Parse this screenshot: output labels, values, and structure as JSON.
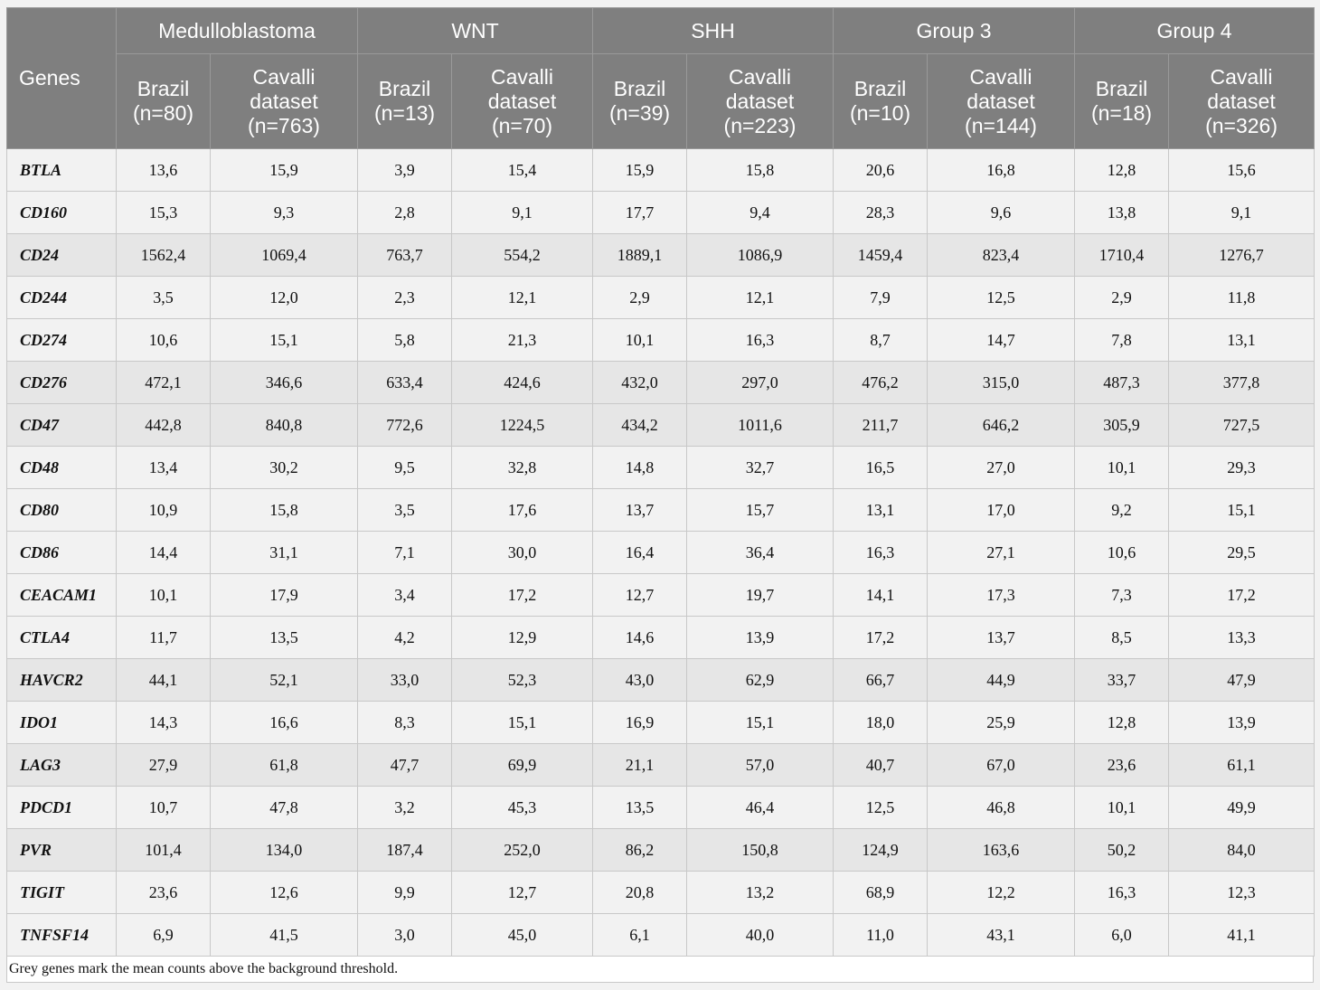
{
  "header": {
    "genes_label": "Genes",
    "groups": [
      "Medulloblastoma",
      "WNT",
      "SHH",
      "Group 3",
      "Group 4"
    ],
    "subheaders": [
      [
        "Brazil",
        "(n=80)"
      ],
      [
        "Cavalli",
        "dataset",
        "(n=763)"
      ],
      [
        "Brazil",
        "(n=13)"
      ],
      [
        "Cavalli",
        "dataset",
        "(n=70)"
      ],
      [
        "Brazil",
        "(n=39)"
      ],
      [
        "Cavalli",
        "dataset",
        "(n=223)"
      ],
      [
        "Brazil",
        "(n=10)"
      ],
      [
        "Cavalli",
        "dataset",
        "(n=144)"
      ],
      [
        "Brazil",
        "(n=18)"
      ],
      [
        "Cavalli",
        "dataset",
        "(n=326)"
      ]
    ]
  },
  "rows": [
    {
      "gene": "BTLA",
      "grey": false,
      "values": [
        "13,6",
        "15,9",
        "3,9",
        "15,4",
        "15,9",
        "15,8",
        "20,6",
        "16,8",
        "12,8",
        "15,6"
      ]
    },
    {
      "gene": "CD160",
      "grey": false,
      "values": [
        "15,3",
        "9,3",
        "2,8",
        "9,1",
        "17,7",
        "9,4",
        "28,3",
        "9,6",
        "13,8",
        "9,1"
      ]
    },
    {
      "gene": "CD24",
      "grey": true,
      "values": [
        "1562,4",
        "1069,4",
        "763,7",
        "554,2",
        "1889,1",
        "1086,9",
        "1459,4",
        "823,4",
        "1710,4",
        "1276,7"
      ]
    },
    {
      "gene": "CD244",
      "grey": false,
      "values": [
        "3,5",
        "12,0",
        "2,3",
        "12,1",
        "2,9",
        "12,1",
        "7,9",
        "12,5",
        "2,9",
        "11,8"
      ]
    },
    {
      "gene": "CD274",
      "grey": false,
      "values": [
        "10,6",
        "15,1",
        "5,8",
        "21,3",
        "10,1",
        "16,3",
        "8,7",
        "14,7",
        "7,8",
        "13,1"
      ]
    },
    {
      "gene": "CD276",
      "grey": true,
      "values": [
        "472,1",
        "346,6",
        "633,4",
        "424,6",
        "432,0",
        "297,0",
        "476,2",
        "315,0",
        "487,3",
        "377,8"
      ]
    },
    {
      "gene": "CD47",
      "grey": true,
      "values": [
        "442,8",
        "840,8",
        "772,6",
        "1224,5",
        "434,2",
        "1011,6",
        "211,7",
        "646,2",
        "305,9",
        "727,5"
      ]
    },
    {
      "gene": "CD48",
      "grey": false,
      "values": [
        "13,4",
        "30,2",
        "9,5",
        "32,8",
        "14,8",
        "32,7",
        "16,5",
        "27,0",
        "10,1",
        "29,3"
      ]
    },
    {
      "gene": "CD80",
      "grey": false,
      "values": [
        "10,9",
        "15,8",
        "3,5",
        "17,6",
        "13,7",
        "15,7",
        "13,1",
        "17,0",
        "9,2",
        "15,1"
      ]
    },
    {
      "gene": "CD86",
      "grey": false,
      "values": [
        "14,4",
        "31,1",
        "7,1",
        "30,0",
        "16,4",
        "36,4",
        "16,3",
        "27,1",
        "10,6",
        "29,5"
      ]
    },
    {
      "gene": "CEACAM1",
      "grey": false,
      "values": [
        "10,1",
        "17,9",
        "3,4",
        "17,2",
        "12,7",
        "19,7",
        "14,1",
        "17,3",
        "7,3",
        "17,2"
      ]
    },
    {
      "gene": "CTLA4",
      "grey": false,
      "values": [
        "11,7",
        "13,5",
        "4,2",
        "12,9",
        "14,6",
        "13,9",
        "17,2",
        "13,7",
        "8,5",
        "13,3"
      ]
    },
    {
      "gene": "HAVCR2",
      "grey": true,
      "values": [
        "44,1",
        "52,1",
        "33,0",
        "52,3",
        "43,0",
        "62,9",
        "66,7",
        "44,9",
        "33,7",
        "47,9"
      ]
    },
    {
      "gene": "IDO1",
      "grey": false,
      "values": [
        "14,3",
        "16,6",
        "8,3",
        "15,1",
        "16,9",
        "15,1",
        "18,0",
        "25,9",
        "12,8",
        "13,9"
      ]
    },
    {
      "gene": "LAG3",
      "grey": true,
      "values": [
        "27,9",
        "61,8",
        "47,7",
        "69,9",
        "21,1",
        "57,0",
        "40,7",
        "67,0",
        "23,6",
        "61,1"
      ]
    },
    {
      "gene": "PDCD1",
      "grey": false,
      "values": [
        "10,7",
        "47,8",
        "3,2",
        "45,3",
        "13,5",
        "46,4",
        "12,5",
        "46,8",
        "10,1",
        "49,9"
      ]
    },
    {
      "gene": "PVR",
      "grey": true,
      "values": [
        "101,4",
        "134,0",
        "187,4",
        "252,0",
        "86,2",
        "150,8",
        "124,9",
        "163,6",
        "50,2",
        "84,0"
      ]
    },
    {
      "gene": "TIGIT",
      "grey": false,
      "values": [
        "23,6",
        "12,6",
        "9,9",
        "12,7",
        "20,8",
        "13,2",
        "68,9",
        "12,2",
        "16,3",
        "12,3"
      ]
    },
    {
      "gene": "TNFSF14",
      "grey": false,
      "values": [
        "6,9",
        "41,5",
        "3,0",
        "45,0",
        "6,1",
        "40,0",
        "11,0",
        "43,1",
        "6,0",
        "41,1"
      ]
    }
  ],
  "footnote": "Grey genes mark the mean counts above the background threshold.",
  "colors": {
    "header_bg": "#7f7f7f",
    "header_text": "#ffffff",
    "grey_row_bg": "#e6e6e6"
  }
}
